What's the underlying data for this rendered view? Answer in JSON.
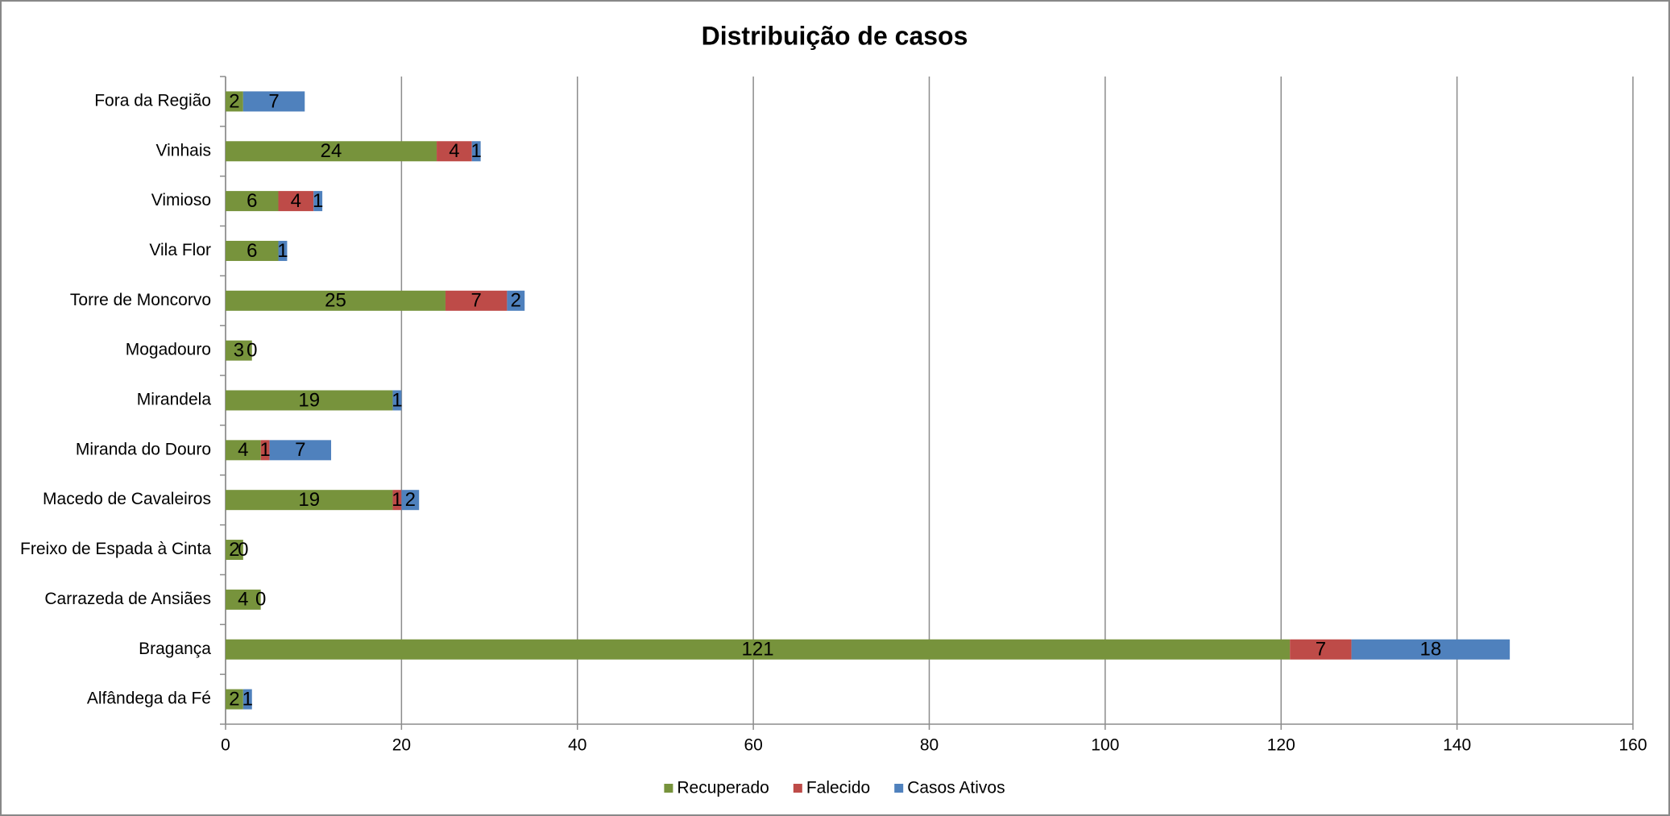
{
  "chart_data": {
    "type": "stacked-bar-horizontal",
    "title": "Distribuição de casos",
    "categories": [
      "Alfândega da Fé",
      "Bragança",
      "Carrazeda de Ansiães",
      "Freixo de Espada à Cinta",
      "Macedo de Cavaleiros",
      "Miranda do Douro",
      "Mirandela",
      "Mogadouro",
      "Torre de Moncorvo",
      "Vila Flor",
      "Vimioso",
      "Vinhais",
      "Fora da Região"
    ],
    "series": [
      {
        "name": "Recuperado",
        "color": "#77933c",
        "values": [
          2,
          121,
          4,
          2,
          19,
          4,
          19,
          3,
          25,
          6,
          6,
          24,
          2
        ]
      },
      {
        "name": "Falecido",
        "color": "#be4b48",
        "values": [
          null,
          7,
          null,
          null,
          1,
          1,
          null,
          null,
          7,
          null,
          4,
          4,
          null
        ]
      },
      {
        "name": "Casos Ativos",
        "color": "#4f81bd",
        "values": [
          1,
          18,
          0,
          0,
          2,
          7,
          1,
          0,
          2,
          1,
          1,
          1,
          7
        ]
      }
    ],
    "xlim": [
      0,
      160
    ],
    "xticks": [
      0,
      20,
      40,
      60,
      80,
      100,
      120,
      140,
      160
    ],
    "grid": true,
    "legend": "bottom"
  }
}
